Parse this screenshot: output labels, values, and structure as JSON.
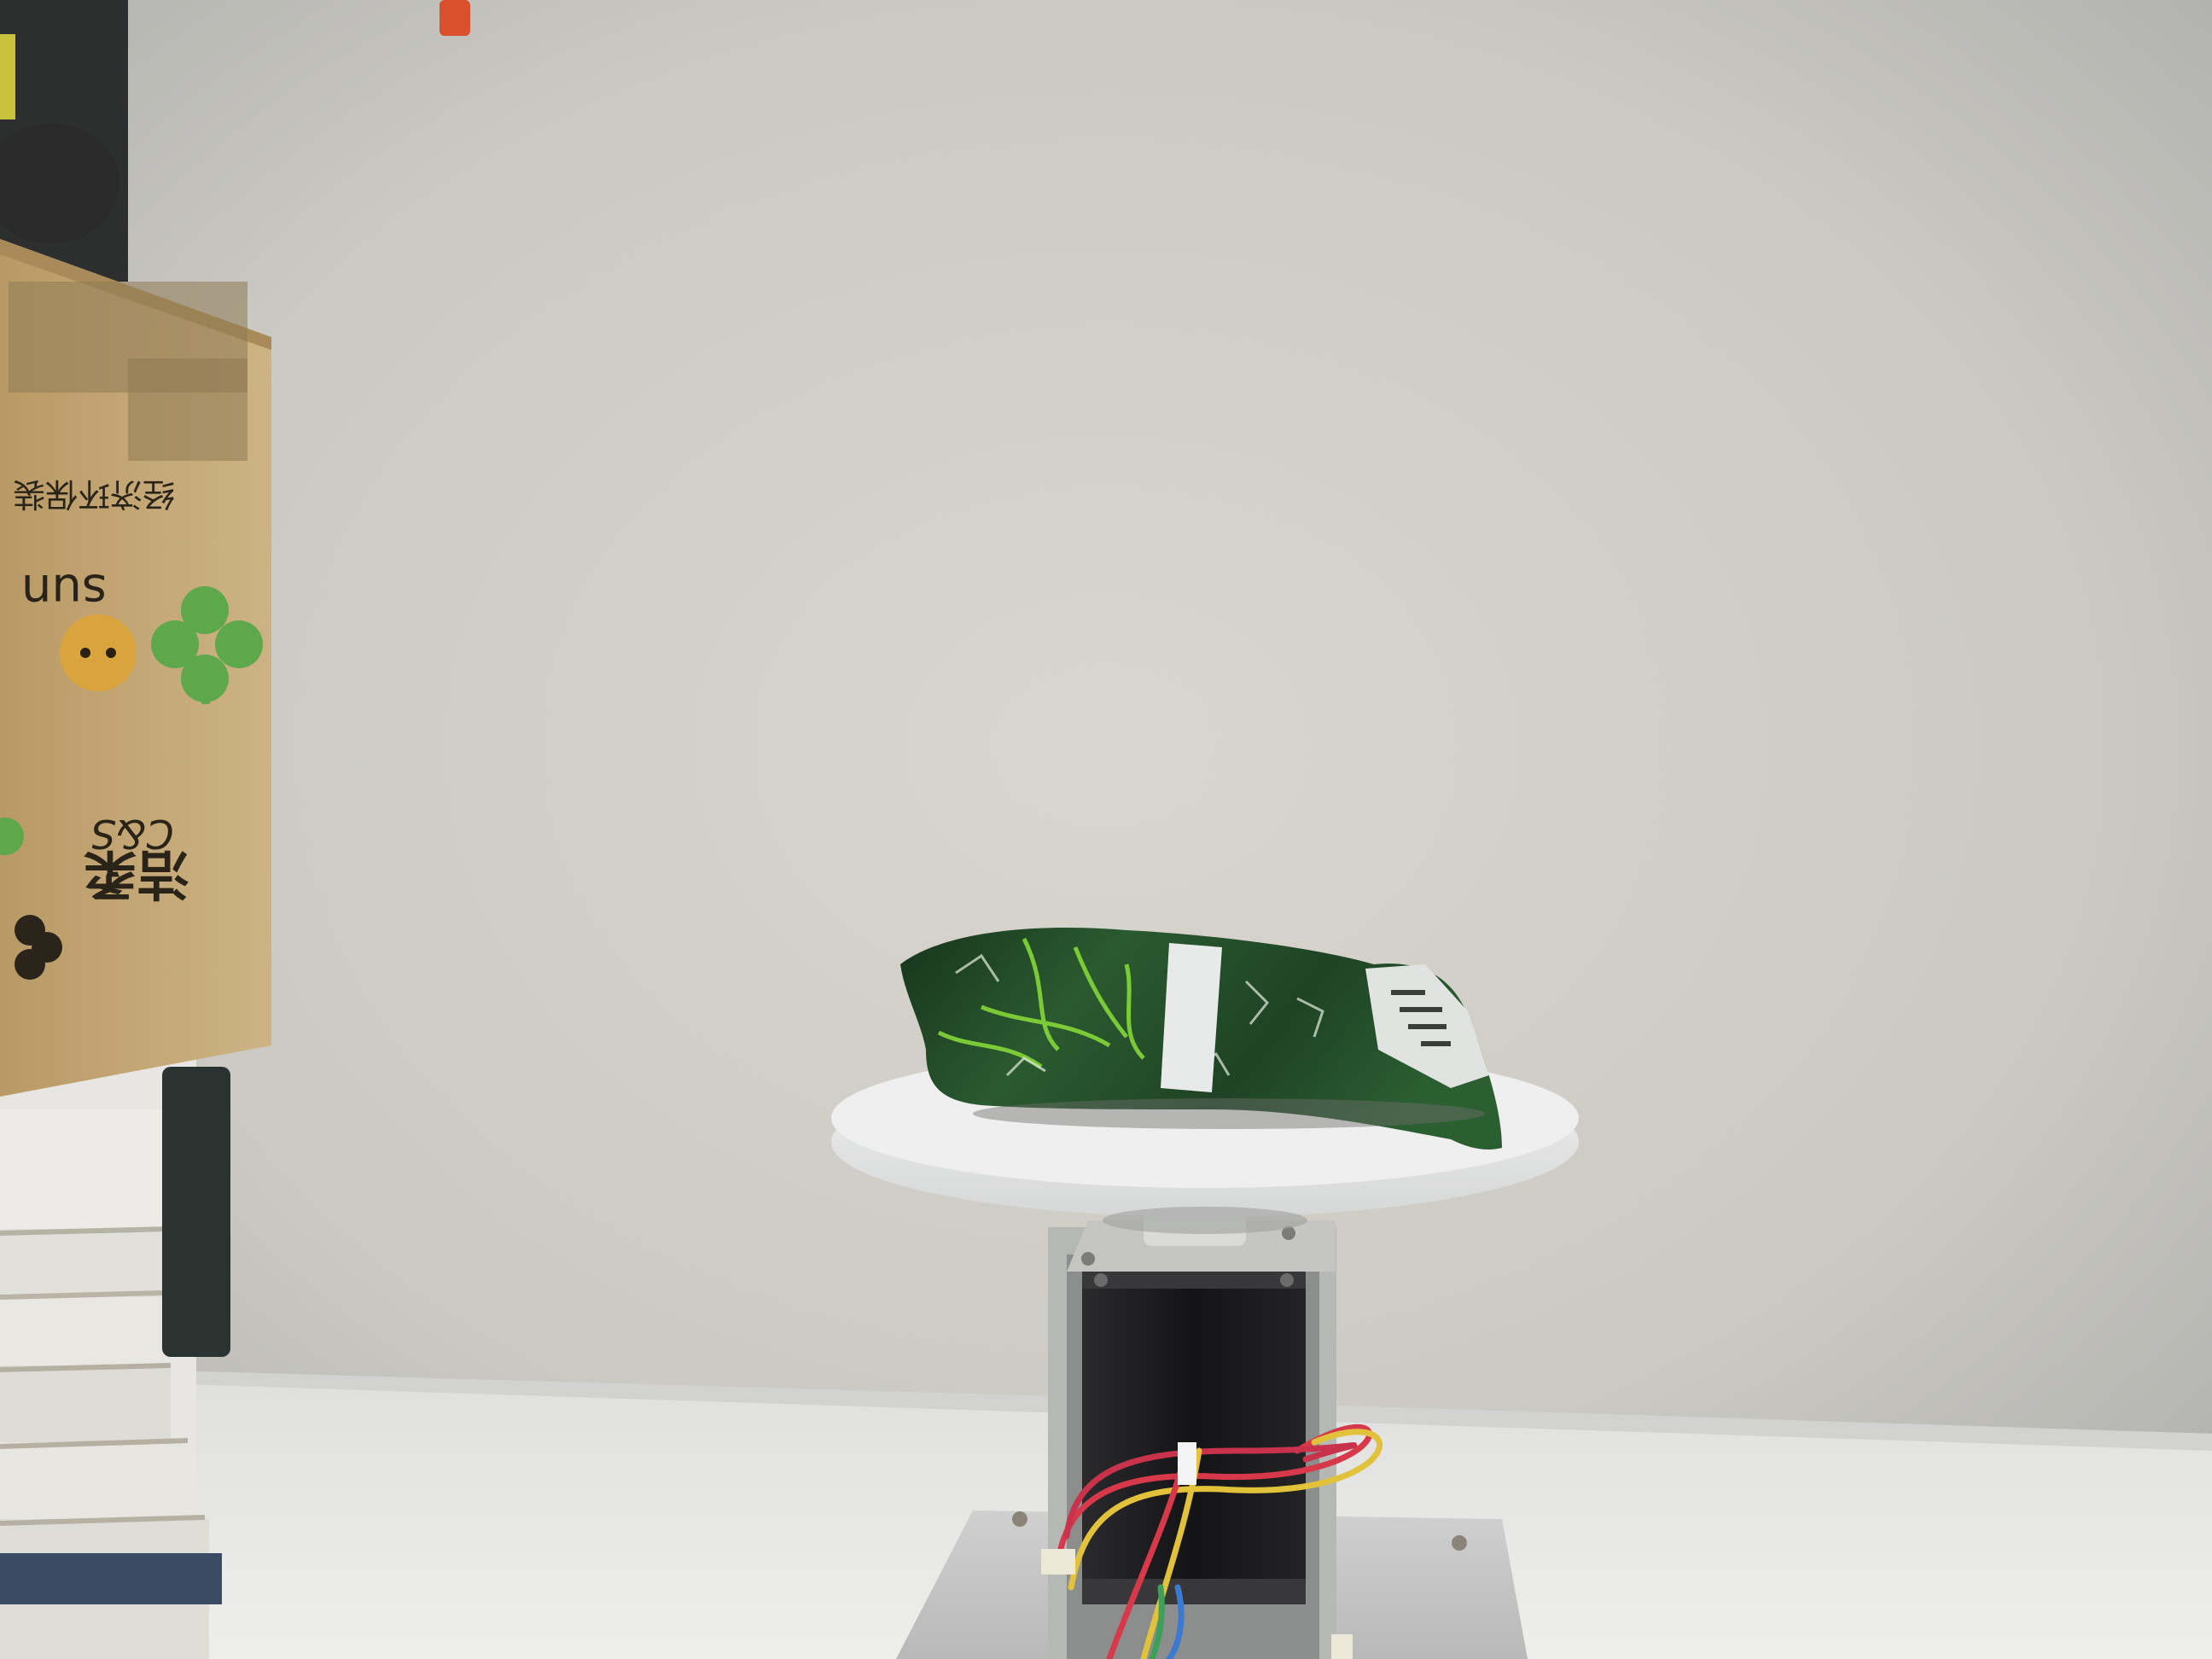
{
  "scene": {
    "subject": "foil-snack-bag-on-turntable",
    "colors": {
      "wall": "#cfcdc7",
      "table": "#e6e6e4",
      "cardboard": "#c4a877",
      "bag_green": "#1f4a2a",
      "bag_highlight": "#8adf3a",
      "turntable_disc": "#e4e5e4",
      "motor": "#1b1b1d",
      "wire_red": "#d8394a",
      "wire_yellow": "#e2c23a"
    }
  },
  "box_print": {
    "brand": "洁柔",
    "latin": "C&S",
    "tagline_small": "sun",
    "tagline_sub": "经济环保装"
  }
}
